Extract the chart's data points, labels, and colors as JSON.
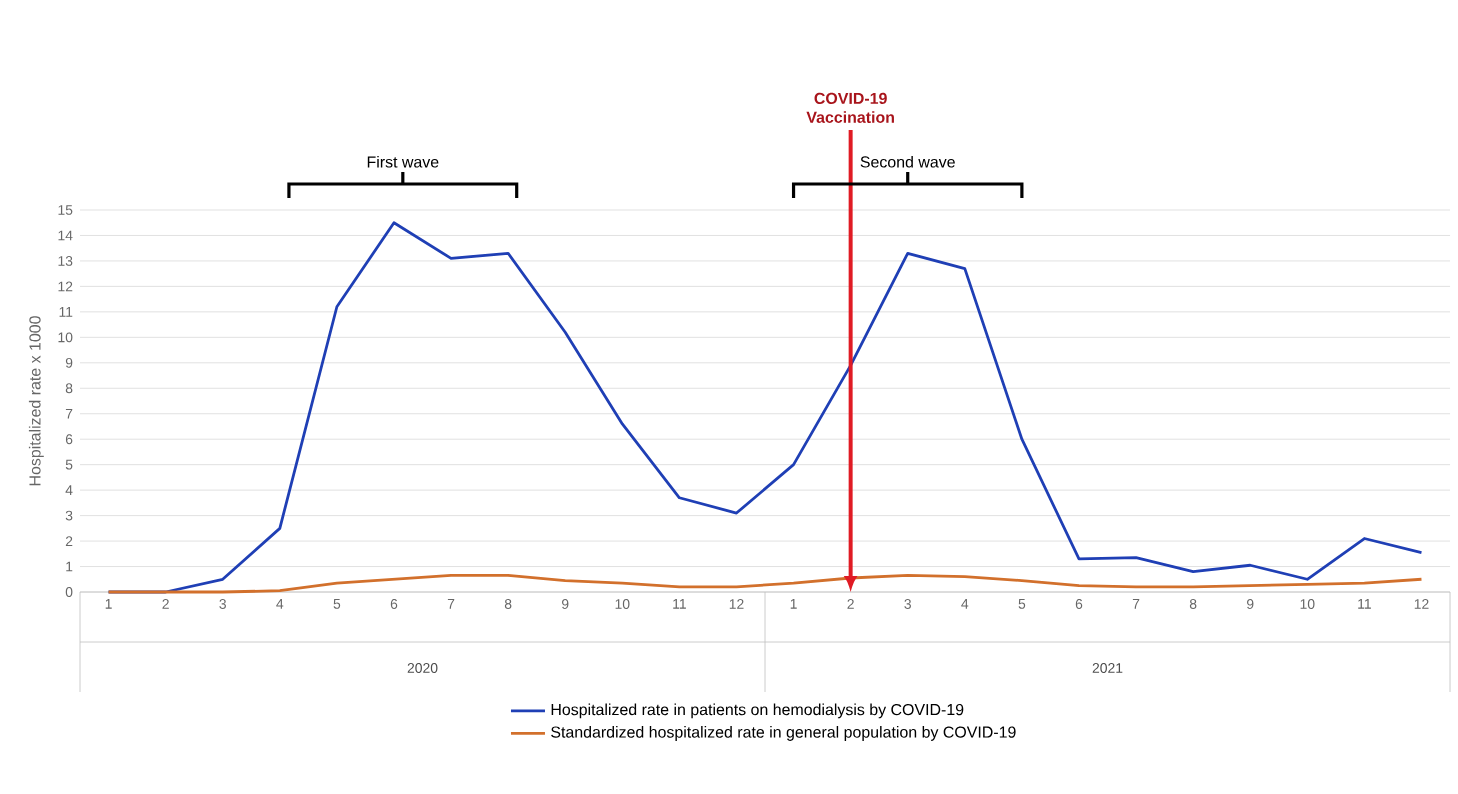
{
  "chart_data": {
    "type": "line",
    "ylabel": "Hospitalized rate x 1000",
    "x": [
      "2020-01",
      "2020-02",
      "2020-03",
      "2020-04",
      "2020-05",
      "2020-06",
      "2020-07",
      "2020-08",
      "2020-09",
      "2020-10",
      "2020-11",
      "2020-12",
      "2021-01",
      "2021-02",
      "2021-03",
      "2021-04",
      "2021-05",
      "2021-06",
      "2021-07",
      "2021-08",
      "2021-09",
      "2021-10",
      "2021-11",
      "2021-12"
    ],
    "xlim": [
      "2019-12-16",
      "2021-12-16"
    ],
    "xticks": [
      {
        "value": "2020-01",
        "label": "1"
      },
      {
        "value": "2020-02",
        "label": "2"
      },
      {
        "value": "2020-03",
        "label": "3"
      },
      {
        "value": "2020-04",
        "label": "4"
      },
      {
        "value": "2020-05",
        "label": "5"
      },
      {
        "value": "2020-06",
        "label": "6"
      },
      {
        "value": "2020-07",
        "label": "7"
      },
      {
        "value": "2020-08",
        "label": "8"
      },
      {
        "value": "2020-09",
        "label": "9"
      },
      {
        "value": "2020-10",
        "label": "10"
      },
      {
        "value": "2020-11",
        "label": "11"
      },
      {
        "value": "2020-12",
        "label": "12"
      },
      {
        "value": "2021-01",
        "label": "1"
      },
      {
        "value": "2021-02",
        "label": "2"
      },
      {
        "value": "2021-03",
        "label": "3"
      },
      {
        "value": "2021-04",
        "label": "4"
      },
      {
        "value": "2021-05",
        "label": "5"
      },
      {
        "value": "2021-06",
        "label": "6"
      },
      {
        "value": "2021-07",
        "label": "7"
      },
      {
        "value": "2021-08",
        "label": "8"
      },
      {
        "value": "2021-09",
        "label": "9"
      },
      {
        "value": "2021-10",
        "label": "10"
      },
      {
        "value": "2021-11",
        "label": "11"
      },
      {
        "value": "2021-12",
        "label": "12"
      }
    ],
    "series": [
      {
        "name": "Hospitalized rate in patients on hemodialysis by COVID-19",
        "color": "#1f3fb5",
        "values": [
          0,
          0,
          0.5,
          2.5,
          11.2,
          14.5,
          13.1,
          13.3,
          10.2,
          6.6,
          3.7,
          3.1,
          5.0,
          8.9,
          13.3,
          12.7,
          6.0,
          1.3,
          1.35,
          0.8,
          1.05,
          0.5,
          2.1,
          1.55
        ]
      },
      {
        "name": "Standardized hospitalized rate in general population by COVID-19",
        "color": "#d2702c",
        "values": [
          0,
          0,
          0,
          0.05,
          0.35,
          0.5,
          0.65,
          0.65,
          0.45,
          0.35,
          0.2,
          0.2,
          0.35,
          0.55,
          0.65,
          0.6,
          0.45,
          0.25,
          0.2,
          0.2,
          0.25,
          0.3,
          0.35,
          0.5
        ]
      }
    ],
    "ylim": [
      0,
      15
    ],
    "yticks": [
      0,
      1,
      2,
      3,
      4,
      5,
      6,
      7,
      8,
      9,
      10,
      11,
      12,
      13,
      14,
      15
    ],
    "grid": "y",
    "legend": "bottom",
    "marker": "none",
    "line_style": "solid",
    "annotations": [
      "First wave",
      "Second wave",
      "2020",
      "2021"
    ],
    "ref_lines": [
      {
        "axis": "x",
        "value": "2021-02",
        "label": "COVID-19 Vaccination",
        "color": "#e01b24"
      }
    ]
  }
}
